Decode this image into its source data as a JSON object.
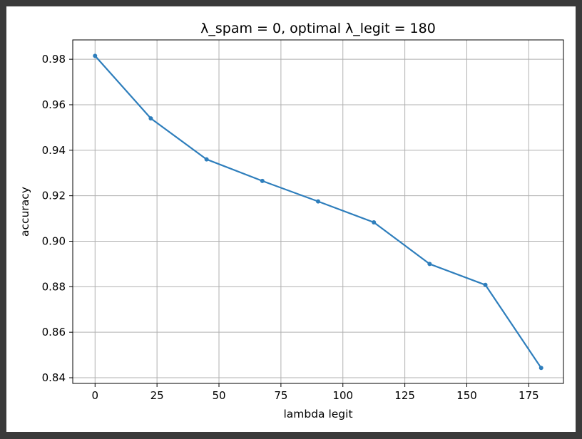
{
  "chart_data": {
    "type": "line",
    "title": "λ_spam = 0, optimal λ_legit = 180",
    "xlabel": "lambda legit",
    "ylabel": "accuracy",
    "x": [
      0,
      22.5,
      45,
      67.5,
      90,
      112.5,
      135,
      157.5,
      180
    ],
    "series": [
      {
        "values": [
          0.9815,
          0.954,
          0.936,
          0.9265,
          0.9175,
          0.9083,
          0.89,
          0.8808,
          0.8443
        ]
      }
    ],
    "xlim": [
      -9,
      189
    ],
    "ylim": [
      0.8375,
      0.9885
    ],
    "xticks": [
      0,
      25,
      50,
      75,
      100,
      125,
      150,
      175
    ],
    "xtick_labels": [
      "0",
      "25",
      "50",
      "75",
      "100",
      "125",
      "150",
      "175"
    ],
    "yticks": [
      0.84,
      0.86,
      0.88,
      0.9,
      0.92,
      0.94,
      0.96,
      0.98
    ],
    "ytick_labels": [
      "0.84",
      "0.86",
      "0.88",
      "0.90",
      "0.92",
      "0.94",
      "0.96",
      "0.98"
    ],
    "grid": true,
    "line_color": "#2e7ebc"
  }
}
